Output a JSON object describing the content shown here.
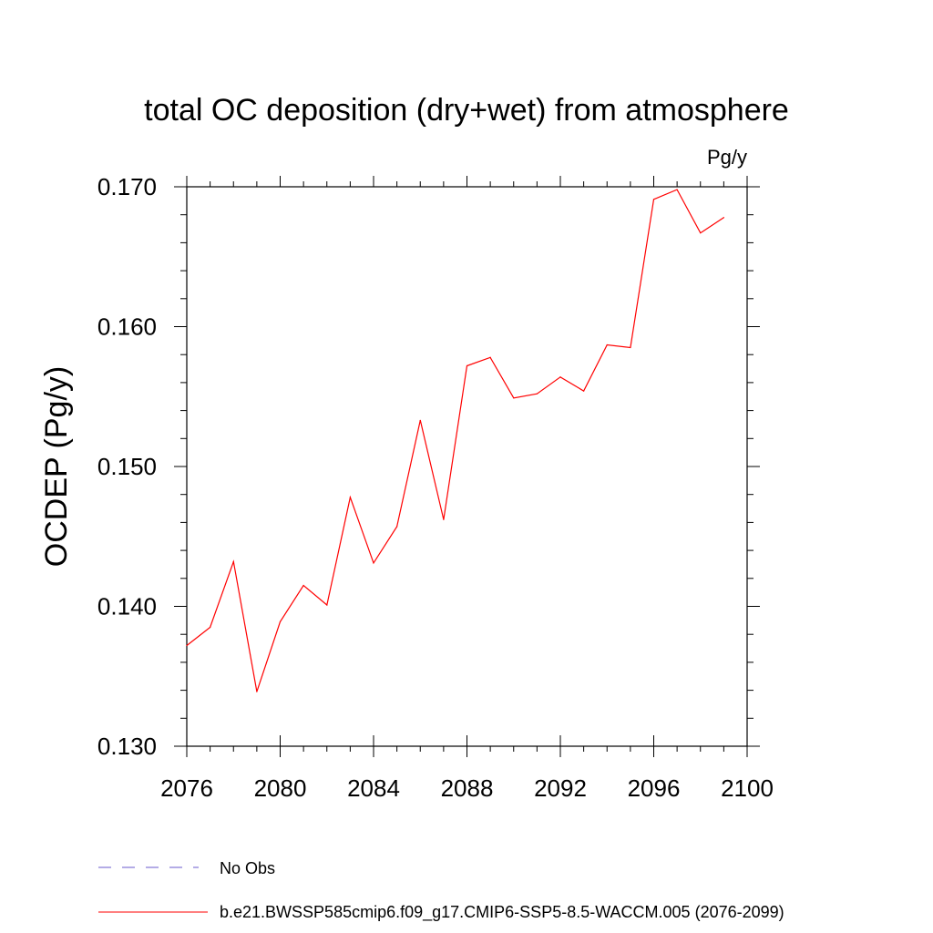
{
  "chart_data": {
    "type": "line",
    "title": "total OC deposition (dry+wet) from atmosphere",
    "units": "Pg/y",
    "ylabel": "OCDEP  (Pg/y)",
    "xlabel": "",
    "xlim": [
      2076,
      2100
    ],
    "ylim": [
      0.13,
      0.17
    ],
    "x_ticks": [
      "2076",
      "2080",
      "2084",
      "2088",
      "2092",
      "2096",
      "2100"
    ],
    "y_ticks": [
      "0.130",
      "0.140",
      "0.150",
      "0.160",
      "0.170"
    ],
    "grid": false,
    "legend_position": "bottom",
    "series": [
      {
        "name": "b.e21.BWSSP585cmip6.f09_g17.CMIP6-SSP5-8.5-WACCM.005 (2076-2099)",
        "color": "#ff0000",
        "x": [
          2076,
          2077,
          2078,
          2079,
          2080,
          2081,
          2082,
          2083,
          2084,
          2085,
          2086,
          2087,
          2088,
          2089,
          2090,
          2091,
          2092,
          2093,
          2094,
          2095,
          2096,
          2097,
          2098,
          2099
        ],
        "y": [
          0.1372,
          0.1385,
          0.1432,
          0.1339,
          0.1389,
          0.1415,
          0.1401,
          0.1478,
          0.1431,
          0.1457,
          0.1533,
          0.1462,
          0.1572,
          0.1578,
          0.1549,
          0.1552,
          0.1564,
          0.1554,
          0.1587,
          0.1585,
          0.1691,
          0.1698,
          0.1667,
          0.1678
        ]
      }
    ],
    "legend": [
      {
        "label": "No Obs",
        "style": "dashed",
        "color": "#6a5acd"
      },
      {
        "label": "b.e21.BWSSP585cmip6.f09_g17.CMIP6-SSP5-8.5-WACCM.005 (2076-2099)",
        "style": "solid",
        "color": "#ff0000"
      }
    ]
  }
}
